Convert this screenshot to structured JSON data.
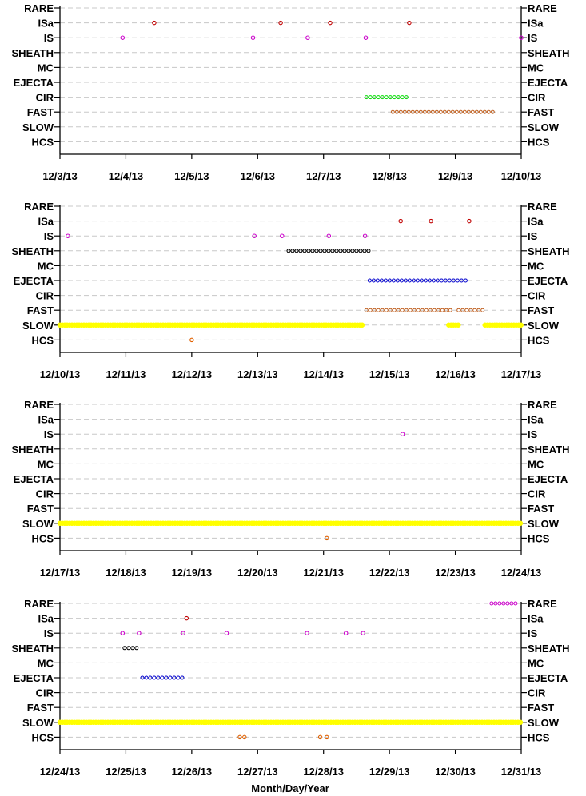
{
  "chart_data": {
    "type": "scatter",
    "xlabel": "Month/Day/Year",
    "categories": [
      "RARE",
      "ISa",
      "IS",
      "SHEATH",
      "MC",
      "EJECTA",
      "CIR",
      "FAST",
      "SLOW",
      "HCS"
    ],
    "colors": {
      "RARE": "#cc00cc",
      "ISa": "#c00000",
      "IS": "#cc00cc",
      "SHEATH": "#000000",
      "MC": "#000000",
      "EJECTA": "#0000cc",
      "CIR": "#00dd00",
      "FAST": "#c06020",
      "SLOW": "#ffff00",
      "HCS": "#e06000"
    },
    "panels": [
      {
        "xlim": [
          0,
          7
        ],
        "x_ticks": [
          "12/3/13",
          "12/4/13",
          "12/5/13",
          "12/6/13",
          "12/7/13",
          "12/8/13",
          "12/9/13",
          "12/10/13"
        ],
        "points": {
          "ISa": [
            1.43,
            3.35,
            4.1,
            5.3
          ],
          "IS": [
            0.95,
            2.93,
            3.76,
            4.64,
            7.0
          ]
        },
        "intervals": {
          "CIR": [
            [
              4.65,
              5.3
            ]
          ],
          "FAST": [
            [
              5.05,
              6.6
            ]
          ]
        }
      },
      {
        "xlim": [
          0,
          7
        ],
        "x_ticks": [
          "12/10/13",
          "12/11/13",
          "12/12/13",
          "12/13/13",
          "12/14/13",
          "12/15/13",
          "12/16/13",
          "12/17/13"
        ],
        "points": {
          "ISa": [
            5.17,
            5.63,
            6.21
          ],
          "IS": [
            0.12,
            2.95,
            3.37,
            4.08,
            4.63
          ],
          "HCS": [
            2.0
          ]
        },
        "intervals": {
          "SHEATH": [
            [
              3.47,
              4.7
            ]
          ],
          "EJECTA": [
            [
              4.7,
              6.2
            ]
          ],
          "FAST": [
            [
              4.65,
              5.95
            ],
            [
              6.05,
              6.45
            ]
          ],
          "SLOW": [
            [
              0,
              4.6
            ],
            [
              5.9,
              6.05
            ],
            [
              6.45,
              7.0
            ]
          ]
        }
      },
      {
        "xlim": [
          0,
          7
        ],
        "x_ticks": [
          "12/17/13",
          "12/18/13",
          "12/19/13",
          "12/20/13",
          "12/21/13",
          "12/22/13",
          "12/23/13",
          "12/24/13"
        ],
        "points": {
          "IS": [
            5.2
          ],
          "HCS": [
            4.05
          ]
        },
        "intervals": {
          "SLOW": [
            [
              0,
              7.0
            ]
          ]
        }
      },
      {
        "xlim": [
          0,
          7
        ],
        "x_ticks": [
          "12/24/13",
          "12/25/13",
          "12/26/13",
          "12/27/13",
          "12/28/13",
          "12/29/13",
          "12/30/13",
          "12/31/13"
        ],
        "points": {
          "ISa": [
            1.92
          ],
          "IS": [
            0.95,
            1.2,
            1.87,
            2.53,
            3.75,
            4.34,
            4.6
          ],
          "HCS": [
            2.73,
            2.8,
            3.95,
            4.05
          ]
        },
        "intervals": {
          "RARE": [
            [
              6.55,
              6.95
            ]
          ],
          "SHEATH": [
            [
              0.98,
              1.22
            ]
          ],
          "EJECTA": [
            [
              1.25,
              1.87
            ]
          ],
          "SLOW": [
            [
              0,
              7.0
            ]
          ]
        }
      }
    ]
  }
}
